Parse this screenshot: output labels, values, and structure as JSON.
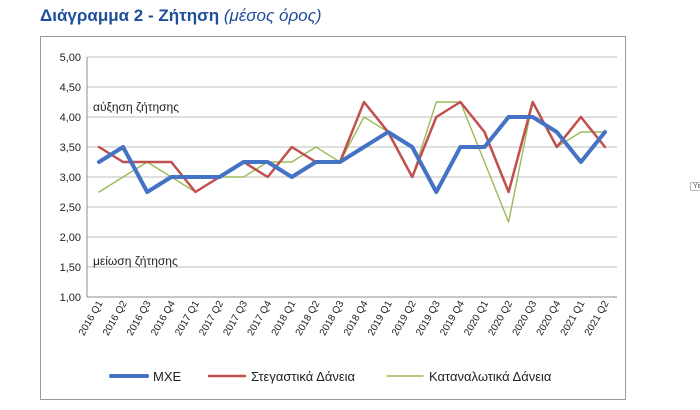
{
  "title": {
    "main": "Διάγραμμα 2 - Ζήτηση",
    "sub": "(μέσος όρος)"
  },
  "side_tag": "Υε",
  "colors": {
    "title": "#1f4e9a",
    "mxe": "#4472c4",
    "housing": "#c0504d",
    "consumer": "#9bbb59",
    "grid": "#bfbfbf"
  },
  "chart_data": {
    "type": "line",
    "categories": [
      "2016 Q1",
      "2016 Q2",
      "2016 Q3",
      "2016 Q4",
      "2017 Q1",
      "2017 Q2",
      "2017 Q3",
      "2017 Q4",
      "2018 Q1",
      "2018 Q2",
      "2018 Q3",
      "2018 Q4",
      "2019 Q1",
      "2019 Q2",
      "2019 Q3",
      "2019 Q4",
      "2020 Q1",
      "2020 Q2",
      "2020 Q3",
      "2020 Q4",
      "2021 Q1",
      "2021 Q2"
    ],
    "ylim": [
      1.0,
      5.0
    ],
    "yticks": [
      "1,00",
      "1,50",
      "2,00",
      "2,50",
      "3,00",
      "3,50",
      "4,00",
      "4,50",
      "5,00"
    ],
    "grid": true,
    "legend_position": "bottom",
    "annotations": {
      "upper": "αύξηση ζήτησης",
      "lower": "μείωση ζήτησης"
    },
    "series": [
      {
        "name": "ΜΧΕ",
        "color": "#4472c4",
        "values": [
          3.25,
          3.5,
          2.75,
          3.0,
          3.0,
          3.0,
          3.25,
          3.25,
          3.0,
          3.25,
          3.25,
          3.5,
          3.75,
          3.5,
          2.75,
          3.5,
          3.5,
          4.0,
          4.0,
          3.75,
          3.25,
          3.75
        ]
      },
      {
        "name": "Στεγαστικά Δάνεια",
        "color": "#c0504d",
        "values": [
          3.5,
          3.25,
          3.25,
          3.25,
          2.75,
          3.0,
          3.25,
          3.0,
          3.5,
          3.25,
          3.25,
          4.25,
          3.75,
          3.0,
          4.0,
          4.25,
          3.75,
          2.75,
          4.25,
          3.5,
          4.0,
          3.5
        ]
      },
      {
        "name": "Καταναλωτικά Δάνεια",
        "color": "#9bbb59",
        "values": [
          2.75,
          3.0,
          3.25,
          3.0,
          2.75,
          3.0,
          3.0,
          3.25,
          3.25,
          3.5,
          3.25,
          4.0,
          3.75,
          3.0,
          4.25,
          4.25,
          3.25,
          2.25,
          4.25,
          3.5,
          3.75,
          3.75
        ]
      }
    ]
  }
}
